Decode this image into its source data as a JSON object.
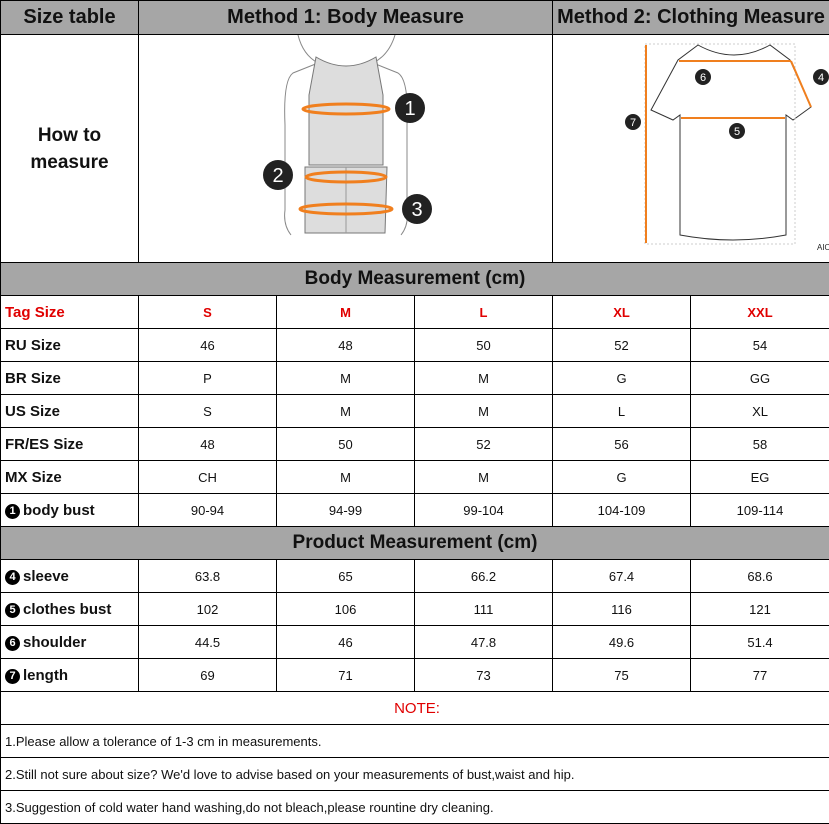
{
  "header": {
    "col1": "Size table",
    "col2": "Method 1: Body  Measure",
    "col3": "Method 2: Clothing Measure"
  },
  "how_to": "How to measure",
  "body_figure": {
    "markers": [
      "1",
      "2",
      "3"
    ],
    "accent": "#f07f1e"
  },
  "shirt_figure": {
    "markers": [
      "4",
      "5",
      "6",
      "7"
    ],
    "brand": "AIOPESON",
    "accent": "#f07f1e"
  },
  "body_section": "Body Measurement (cm)",
  "tag_row": {
    "label": "Tag Size",
    "values": [
      "S",
      "M",
      "L",
      "XL",
      "XXL"
    ],
    "color": "#e00000"
  },
  "body_rows": [
    {
      "label": "RU Size",
      "values": [
        "46",
        "48",
        "50",
        "52",
        "54"
      ]
    },
    {
      "label": "BR Size",
      "values": [
        "P",
        "M",
        "M",
        "G",
        "GG"
      ]
    },
    {
      "label": "US Size",
      "values": [
        "S",
        "M",
        "M",
        "L",
        "XL"
      ]
    },
    {
      "label": "FR/ES Size",
      "values": [
        "48",
        "50",
        "52",
        "56",
        "58"
      ]
    },
    {
      "label": "MX Size",
      "values": [
        "CH",
        "M",
        "M",
        "G",
        "EG"
      ]
    },
    {
      "num": "1",
      "label": "body bust",
      "values": [
        "90-94",
        "94-99",
        "99-104",
        "104-109",
        "109-114"
      ]
    }
  ],
  "product_section": "Product Measurement (cm)",
  "product_rows": [
    {
      "num": "4",
      "label": "sleeve",
      "values": [
        "63.8",
        "65",
        "66.2",
        "67.4",
        "68.6"
      ]
    },
    {
      "num": "5",
      "label": "clothes bust",
      "values": [
        "102",
        "106",
        "111",
        "116",
        "121"
      ]
    },
    {
      "num": "6",
      "label": "shoulder",
      "values": [
        "44.5",
        "46",
        "47.8",
        "49.6",
        "51.4"
      ]
    },
    {
      "num": "7",
      "label": "length",
      "values": [
        "69",
        "71",
        "73",
        "75",
        "77"
      ]
    }
  ],
  "note": {
    "title": "NOTE:",
    "lines": [
      "1.Please allow a tolerance of 1-3 cm in measurements.",
      "2.Still not sure about size? We'd love to advise based on your measurements of bust,waist and hip.",
      "3.Suggestion of cold water hand washing,do not bleach,please rountine dry cleaning."
    ]
  }
}
